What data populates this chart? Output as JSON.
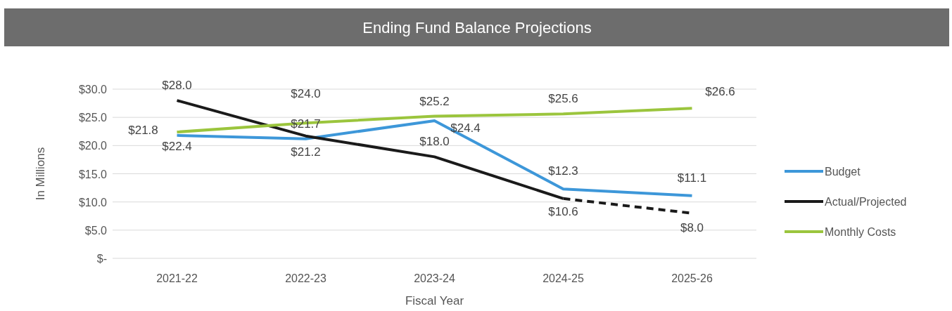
{
  "chart_data": {
    "type": "line",
    "title": "Ending Fund Balance Projections",
    "xlabel": "Fiscal Year",
    "ylabel": "In Millions",
    "categories": [
      "2021-22",
      "2022-23",
      "2023-24",
      "2024-25",
      "2025-26"
    ],
    "series": [
      {
        "name": "Budget",
        "color": "#3d97d9",
        "values": [
          21.8,
          21.2,
          24.4,
          12.3,
          11.1
        ],
        "value_labels": [
          "$21.8",
          "$21.2",
          "$24.4",
          "$12.3",
          "$11.1"
        ]
      },
      {
        "name": "Actual/Projected",
        "color": "#1a1a1a",
        "values": [
          28.0,
          21.7,
          18.0,
          10.6,
          null
        ],
        "value_labels": [
          "$28.0",
          "$21.7",
          "$18.0",
          "$10.6",
          null
        ]
      },
      {
        "color": "#1a1a1a",
        "line_style": "dashed",
        "values": [
          null,
          null,
          null,
          10.6,
          8.0
        ],
        "value_labels": [
          null,
          null,
          null,
          null,
          "$8.0"
        ]
      },
      {
        "name": "Monthly Costs",
        "color": "#9bc53d",
        "values": [
          22.4,
          24.0,
          25.2,
          25.6,
          26.6
        ],
        "value_labels": [
          "$22.4",
          "$24.0",
          "$25.2",
          "$25.6",
          "$26.6"
        ]
      }
    ],
    "ylim": [
      0,
      30
    ],
    "yticks": [
      {
        "value": 0,
        "label": "$-"
      },
      {
        "value": 5,
        "label": "$5.0"
      },
      {
        "value": 10,
        "label": "$10.0"
      },
      {
        "value": 15,
        "label": "$15.0"
      },
      {
        "value": 20,
        "label": "$20.0"
      },
      {
        "value": 25,
        "label": "$25.0"
      },
      {
        "value": 30,
        "label": "$30.0"
      }
    ],
    "grid": "y",
    "legend": "right",
    "marker": "none"
  }
}
